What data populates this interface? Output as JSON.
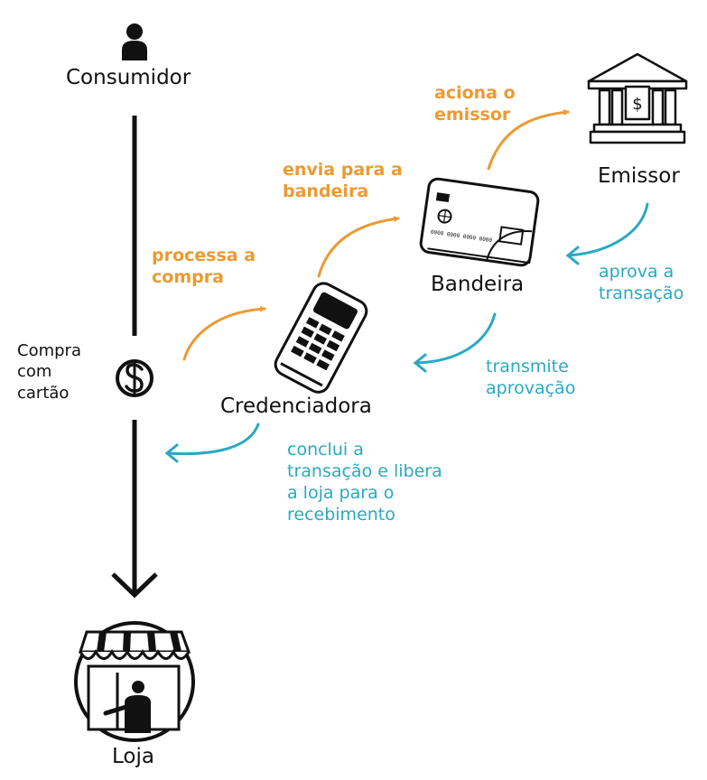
{
  "nodes": {
    "consumidor": "Consumidor",
    "credenciadora": "Credenciadora",
    "bandeira": "Bandeira",
    "emissor": "Emissor",
    "loja": "Loja"
  },
  "side_label": "Compra\ncom\ncartão",
  "steps": {
    "processa": "processa a\ncompra",
    "envia": "envia para a\nbandeira",
    "aciona": "aciona o\nemissor",
    "aprova": "aprova a\ntransação",
    "transmite": "transmite\naprovação",
    "conclui": "conclui a\ntransação e libera\na loja para o\nrecebimento"
  },
  "card_number": "0000 0000 0000 0000",
  "colors": {
    "request": "#ec9a33",
    "response": "#29a9c1",
    "ink": "#111111"
  },
  "icons": [
    "person-icon",
    "dollar-icon",
    "card-machine-icon",
    "credit-card-icon",
    "bank-icon",
    "store-icon"
  ]
}
